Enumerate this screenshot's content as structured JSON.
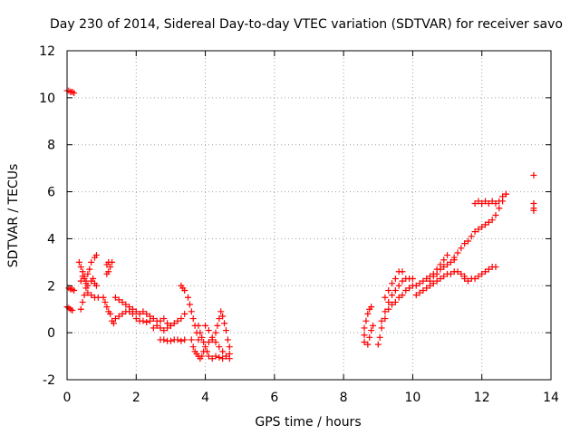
{
  "chart_data": {
    "type": "scatter",
    "title": "Day 230 of 2014, Sidereal Day-to-day VTEC variation (SDTVAR) for receiver savo",
    "xlabel": "GPS time / hours",
    "ylabel": "SDTVAR / TECUs",
    "xlim": [
      0,
      14
    ],
    "ylim": [
      -2,
      12
    ],
    "x_ticks": [
      0,
      2,
      4,
      6,
      8,
      10,
      12,
      14
    ],
    "y_ticks": [
      -2,
      0,
      2,
      4,
      6,
      8,
      10,
      12
    ],
    "x_tick_labels": [
      "0",
      "2",
      "4",
      "6",
      "8",
      "10",
      "12",
      "14"
    ],
    "y_tick_labels": [
      "-2",
      "0",
      "2",
      "4",
      "6",
      "8",
      "10",
      "12"
    ],
    "grid": true,
    "marker": "+",
    "color": "#ff0000",
    "series": [
      {
        "name": "SDTVAR",
        "points": [
          [
            0.0,
            10.3
          ],
          [
            0.05,
            10.3
          ],
          [
            0.1,
            10.25
          ],
          [
            0.15,
            10.25
          ],
          [
            0.2,
            10.2
          ],
          [
            0.0,
            1.1
          ],
          [
            0.05,
            1.05
          ],
          [
            0.1,
            1.0
          ],
          [
            0.15,
            0.95
          ],
          [
            0.05,
            1.9
          ],
          [
            0.1,
            1.85
          ],
          [
            0.15,
            1.85
          ],
          [
            0.2,
            1.8
          ],
          [
            0.35,
            3.0
          ],
          [
            0.4,
            2.8
          ],
          [
            0.45,
            2.6
          ],
          [
            0.5,
            2.4
          ],
          [
            0.55,
            2.2
          ],
          [
            0.6,
            2.5
          ],
          [
            0.65,
            2.7
          ],
          [
            0.7,
            3.0
          ],
          [
            0.8,
            3.2
          ],
          [
            0.85,
            3.3
          ],
          [
            0.4,
            2.2
          ],
          [
            0.45,
            2.4
          ],
          [
            0.5,
            2.3
          ],
          [
            0.55,
            2.1
          ],
          [
            0.6,
            2.0
          ],
          [
            0.7,
            2.2
          ],
          [
            0.75,
            2.3
          ],
          [
            0.8,
            2.1
          ],
          [
            0.85,
            2.0
          ],
          [
            0.4,
            1.0
          ],
          [
            0.45,
            1.3
          ],
          [
            0.5,
            1.6
          ],
          [
            0.55,
            1.9
          ],
          [
            0.6,
            1.7
          ],
          [
            0.7,
            1.6
          ],
          [
            0.8,
            1.5
          ],
          [
            0.9,
            1.5
          ],
          [
            1.15,
            2.9
          ],
          [
            1.2,
            3.0
          ],
          [
            1.25,
            2.8
          ],
          [
            1.3,
            3.0
          ],
          [
            1.15,
            2.5
          ],
          [
            1.2,
            2.6
          ],
          [
            1.05,
            1.5
          ],
          [
            1.1,
            1.3
          ],
          [
            1.15,
            1.1
          ],
          [
            1.2,
            0.9
          ],
          [
            1.25,
            0.8
          ],
          [
            1.3,
            0.5
          ],
          [
            1.35,
            0.4
          ],
          [
            1.4,
            0.6
          ],
          [
            1.5,
            0.7
          ],
          [
            1.6,
            0.8
          ],
          [
            1.7,
            0.9
          ],
          [
            1.8,
            0.9
          ],
          [
            1.9,
            0.8
          ],
          [
            2.0,
            0.6
          ],
          [
            2.1,
            0.5
          ],
          [
            2.2,
            0.5
          ],
          [
            2.3,
            0.45
          ],
          [
            2.4,
            0.5
          ],
          [
            1.4,
            1.5
          ],
          [
            1.5,
            1.4
          ],
          [
            1.6,
            1.3
          ],
          [
            1.7,
            1.2
          ],
          [
            1.8,
            1.1
          ],
          [
            1.9,
            1.0
          ],
          [
            2.0,
            0.9
          ],
          [
            2.1,
            0.8
          ],
          [
            2.2,
            0.9
          ],
          [
            2.3,
            0.8
          ],
          [
            2.4,
            0.7
          ],
          [
            2.5,
            0.6
          ],
          [
            2.6,
            0.5
          ],
          [
            2.7,
            0.5
          ],
          [
            2.8,
            0.6
          ],
          [
            2.9,
            0.4
          ],
          [
            3.0,
            0.3
          ],
          [
            3.1,
            0.4
          ],
          [
            3.2,
            0.5
          ],
          [
            3.3,
            0.6
          ],
          [
            3.4,
            0.8
          ],
          [
            2.5,
            0.2
          ],
          [
            2.6,
            0.3
          ],
          [
            2.7,
            0.2
          ],
          [
            2.8,
            0.1
          ],
          [
            2.9,
            0.2
          ],
          [
            3.0,
            0.3
          ],
          [
            2.7,
            -0.3
          ],
          [
            2.8,
            -0.3
          ],
          [
            2.9,
            -0.35
          ],
          [
            3.0,
            -0.35
          ],
          [
            3.1,
            -0.3
          ],
          [
            3.2,
            -0.3
          ],
          [
            3.3,
            -0.35
          ],
          [
            3.4,
            -0.3
          ],
          [
            3.3,
            2.0
          ],
          [
            3.35,
            1.9
          ],
          [
            3.4,
            1.8
          ],
          [
            3.5,
            1.5
          ],
          [
            3.55,
            1.2
          ],
          [
            3.6,
            0.9
          ],
          [
            3.65,
            0.6
          ],
          [
            3.7,
            0.3
          ],
          [
            3.75,
            0.0
          ],
          [
            3.8,
            -0.3
          ],
          [
            3.6,
            -0.3
          ],
          [
            3.65,
            -0.6
          ],
          [
            3.7,
            -0.8
          ],
          [
            3.75,
            -0.9
          ],
          [
            3.8,
            -1.0
          ],
          [
            3.85,
            -1.1
          ],
          [
            3.9,
            -1.0
          ],
          [
            3.95,
            -0.8
          ],
          [
            3.8,
            0.3
          ],
          [
            3.85,
            0.0
          ],
          [
            3.9,
            -0.2
          ],
          [
            3.95,
            -0.4
          ],
          [
            4.0,
            -0.6
          ],
          [
            4.05,
            -0.8
          ],
          [
            4.1,
            -1.0
          ],
          [
            4.2,
            -1.1
          ],
          [
            4.0,
            0.3
          ],
          [
            4.1,
            0.1
          ],
          [
            4.2,
            -0.2
          ],
          [
            4.3,
            -0.4
          ],
          [
            4.4,
            -0.6
          ],
          [
            4.5,
            -0.8
          ],
          [
            4.6,
            -1.0
          ],
          [
            4.7,
            -1.1
          ],
          [
            4.1,
            -0.4
          ],
          [
            4.2,
            -0.3
          ],
          [
            4.3,
            0.0
          ],
          [
            4.35,
            0.3
          ],
          [
            4.4,
            0.6
          ],
          [
            4.45,
            0.9
          ],
          [
            4.5,
            0.7
          ],
          [
            4.55,
            0.4
          ],
          [
            4.6,
            0.1
          ],
          [
            4.65,
            -0.3
          ],
          [
            4.7,
            -0.6
          ],
          [
            4.3,
            -1.0
          ],
          [
            4.4,
            -1.05
          ],
          [
            4.5,
            -1.1
          ],
          [
            4.6,
            -1.0
          ],
          [
            4.7,
            -0.9
          ],
          [
            8.6,
            -0.4
          ],
          [
            8.6,
            -0.1
          ],
          [
            8.6,
            0.2
          ],
          [
            8.65,
            0.5
          ],
          [
            8.7,
            0.8
          ],
          [
            8.75,
            1.0
          ],
          [
            8.8,
            1.1
          ],
          [
            8.7,
            -0.5
          ],
          [
            8.75,
            -0.2
          ],
          [
            8.8,
            0.1
          ],
          [
            8.85,
            0.3
          ],
          [
            9.0,
            -0.5
          ],
          [
            9.05,
            -0.2
          ],
          [
            9.1,
            0.2
          ],
          [
            9.2,
            0.6
          ],
          [
            9.3,
            1.0
          ],
          [
            9.4,
            1.2
          ],
          [
            9.5,
            1.3
          ],
          [
            9.6,
            1.5
          ],
          [
            9.7,
            1.6
          ],
          [
            9.8,
            1.8
          ],
          [
            9.9,
            1.9
          ],
          [
            10.0,
            2.0
          ],
          [
            9.1,
            0.5
          ],
          [
            9.2,
            0.9
          ],
          [
            9.3,
            1.3
          ],
          [
            9.4,
            1.6
          ],
          [
            9.5,
            1.8
          ],
          [
            9.6,
            2.0
          ],
          [
            9.7,
            2.2
          ],
          [
            9.8,
            2.3
          ],
          [
            9.9,
            2.3
          ],
          [
            10.0,
            2.3
          ],
          [
            9.2,
            1.5
          ],
          [
            9.3,
            1.8
          ],
          [
            9.4,
            2.1
          ],
          [
            9.5,
            2.3
          ],
          [
            9.6,
            2.6
          ],
          [
            9.7,
            2.6
          ],
          [
            10.1,
            2.0
          ],
          [
            10.2,
            2.1
          ],
          [
            10.3,
            2.2
          ],
          [
            10.4,
            2.3
          ],
          [
            10.5,
            2.4
          ],
          [
            10.6,
            2.5
          ],
          [
            10.7,
            2.7
          ],
          [
            10.8,
            2.9
          ],
          [
            10.9,
            3.1
          ],
          [
            11.0,
            3.3
          ],
          [
            10.1,
            1.6
          ],
          [
            10.2,
            1.7
          ],
          [
            10.3,
            1.8
          ],
          [
            10.4,
            1.9
          ],
          [
            10.5,
            2.0
          ],
          [
            10.6,
            2.1
          ],
          [
            10.7,
            2.2
          ],
          [
            10.8,
            2.3
          ],
          [
            10.9,
            2.4
          ],
          [
            11.0,
            2.5
          ],
          [
            11.1,
            2.5
          ],
          [
            11.2,
            2.6
          ],
          [
            11.3,
            2.6
          ],
          [
            11.4,
            2.5
          ],
          [
            11.5,
            2.4
          ],
          [
            10.5,
            2.2
          ],
          [
            10.6,
            2.4
          ],
          [
            10.7,
            2.5
          ],
          [
            10.8,
            2.7
          ],
          [
            10.9,
            2.8
          ],
          [
            11.0,
            2.9
          ],
          [
            11.1,
            3.0
          ],
          [
            11.2,
            3.1
          ],
          [
            11.5,
            2.3
          ],
          [
            11.6,
            2.2
          ],
          [
            11.7,
            2.3
          ],
          [
            11.8,
            2.3
          ],
          [
            11.9,
            2.4
          ],
          [
            12.0,
            2.5
          ],
          [
            12.1,
            2.6
          ],
          [
            12.2,
            2.7
          ],
          [
            12.3,
            2.8
          ],
          [
            12.4,
            2.8
          ],
          [
            11.2,
            3.2
          ],
          [
            11.3,
            3.4
          ],
          [
            11.4,
            3.6
          ],
          [
            11.5,
            3.8
          ],
          [
            11.6,
            3.9
          ],
          [
            11.7,
            4.1
          ],
          [
            11.8,
            4.3
          ],
          [
            11.9,
            4.4
          ],
          [
            12.0,
            4.5
          ],
          [
            12.1,
            4.6
          ],
          [
            12.2,
            4.7
          ],
          [
            12.3,
            4.8
          ],
          [
            12.4,
            5.0
          ],
          [
            12.5,
            5.3
          ],
          [
            12.6,
            5.6
          ],
          [
            12.7,
            5.9
          ],
          [
            11.8,
            5.5
          ],
          [
            11.9,
            5.6
          ],
          [
            12.0,
            5.5
          ],
          [
            12.1,
            5.6
          ],
          [
            12.2,
            5.5
          ],
          [
            12.3,
            5.6
          ],
          [
            12.4,
            5.5
          ],
          [
            12.5,
            5.6
          ],
          [
            12.6,
            5.8
          ],
          [
            12.7,
            5.9
          ],
          [
            13.5,
            6.7
          ],
          [
            13.5,
            5.5
          ],
          [
            13.5,
            5.3
          ],
          [
            13.5,
            5.2
          ]
        ]
      }
    ]
  }
}
